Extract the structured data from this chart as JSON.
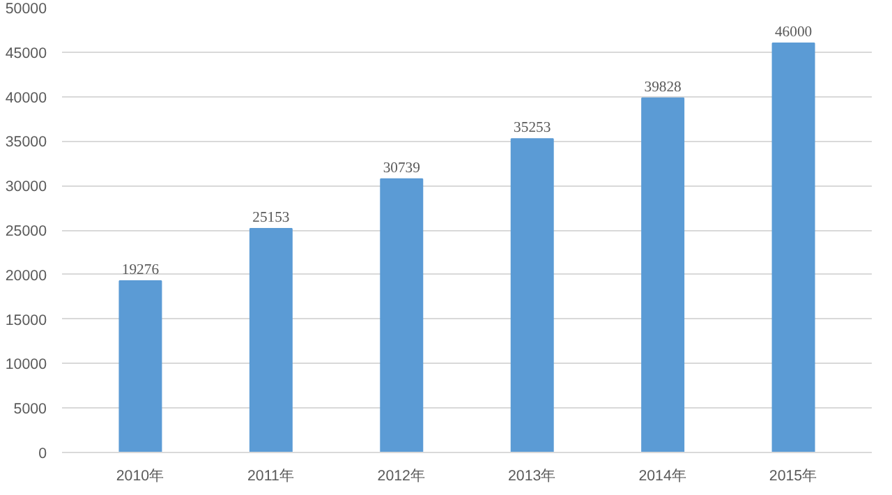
{
  "chart_data": {
    "type": "bar",
    "categories": [
      "2010年",
      "2011年",
      "2012年",
      "2013年",
      "2014年",
      "2015年"
    ],
    "values": [
      19276,
      25153,
      30739,
      35253,
      39828,
      46000
    ],
    "color": "#5b9bd5",
    "ylim": [
      0,
      50000
    ],
    "yticks": [
      0,
      5000,
      10000,
      15000,
      20000,
      25000,
      30000,
      35000,
      40000,
      45000,
      50000
    ],
    "grid": "y",
    "data_labels": true
  }
}
